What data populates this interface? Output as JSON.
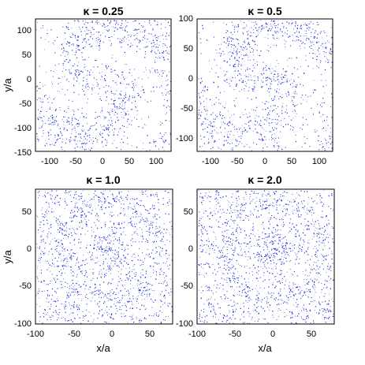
{
  "colors": {
    "dots": "#1f2fd6",
    "background": "#ffffff",
    "axes": "#000000"
  },
  "chart_data": [
    {
      "type": "scatter",
      "title": "κ = 0.25",
      "xlabel": "",
      "ylabel": "y/a",
      "xlim": [
        -125,
        125
      ],
      "ylim": [
        -150,
        120
      ],
      "xticks": [
        "-100",
        "-50",
        "0",
        "50",
        "100"
      ],
      "yticks": [
        "100",
        "50",
        "0",
        "-50",
        "-100",
        "-150"
      ],
      "pattern": {
        "kind": "spiral",
        "arms": 2,
        "core_density": "low"
      }
    },
    {
      "type": "scatter",
      "title": "κ = 0.5",
      "xlabel": "",
      "ylabel": "",
      "xlim": [
        -125,
        125
      ],
      "ylim": [
        -120,
        100
      ],
      "xticks": [
        "-100",
        "-50",
        "0",
        "50",
        "100"
      ],
      "yticks": [
        "100",
        "50",
        "0",
        "-50",
        "-100"
      ],
      "pattern": {
        "kind": "spiral",
        "arms": 2,
        "core_density": "medium"
      }
    },
    {
      "type": "scatter",
      "title": "κ = 1.0",
      "xlabel": "",
      "ylabel": "y/a",
      "xlim": [
        -100,
        80
      ],
      "ylim": [
        -100,
        80
      ],
      "xticks": [
        "-100",
        "-50",
        "0",
        "50"
      ],
      "yticks": [
        "50",
        "0",
        "-50",
        "-100"
      ],
      "pattern": {
        "kind": "ring",
        "core_density": "high"
      }
    },
    {
      "type": "scatter",
      "title": "κ = 2.0",
      "xlabel": "x/a",
      "ylabel": "",
      "xlim": [
        -100,
        80
      ],
      "ylim": [
        -100,
        80
      ],
      "xticks": [
        "-100",
        "-50",
        "0",
        "50"
      ],
      "yticks": [
        "50",
        "0",
        "-50",
        "-100"
      ],
      "pattern": {
        "kind": "ring",
        "core_density": "very high"
      }
    }
  ],
  "shared_xlabel": "x/a"
}
